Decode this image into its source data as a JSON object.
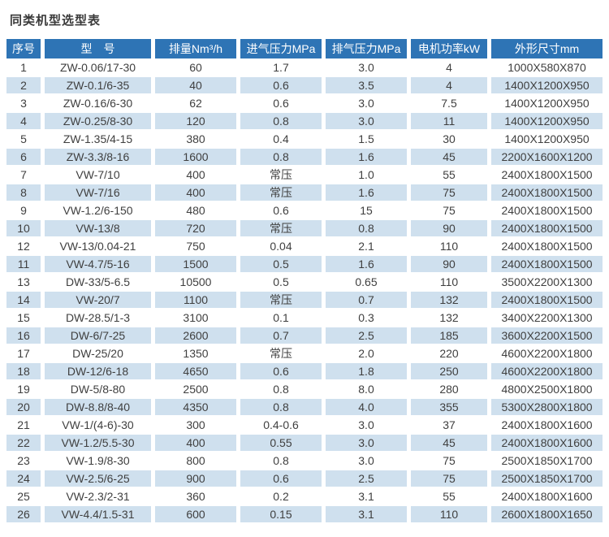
{
  "title": "同类机型选型表",
  "colors": {
    "page_bg": "#ffffff",
    "header_bg": "#2e74b5",
    "header_text": "#ffffff",
    "row_alt_bg": "#cfe0ee",
    "text": "#3f3f3f"
  },
  "table": {
    "headers": [
      "序号",
      "型　号",
      "排量Nm³/h",
      "进气压力MPa",
      "排气压力MPa",
      "电机功率kW",
      "外形尺寸mm"
    ],
    "rows": [
      [
        "1",
        "ZW-0.06/17-30",
        "60",
        "1.7",
        "3.0",
        "4",
        "1000X580X870"
      ],
      [
        "2",
        "ZW-0.1/6-35",
        "40",
        "0.6",
        "3.5",
        "4",
        "1400X1200X950"
      ],
      [
        "3",
        "ZW-0.16/6-30",
        "62",
        "0.6",
        "3.0",
        "7.5",
        "1400X1200X950"
      ],
      [
        "4",
        "ZW-0.25/8-30",
        "120",
        "0.8",
        "3.0",
        "11",
        "1400X1200X950"
      ],
      [
        "5",
        "ZW-1.35/4-15",
        "380",
        "0.4",
        "1.5",
        "30",
        "1400X1200X950"
      ],
      [
        "6",
        "ZW-3.3/8-16",
        "1600",
        "0.8",
        "1.6",
        "45",
        "2200X1600X1200"
      ],
      [
        "7",
        "VW-7/10",
        "400",
        "常压",
        "1.0",
        "55",
        "2400X1800X1500"
      ],
      [
        "8",
        "VW-7/16",
        "400",
        "常压",
        "1.6",
        "75",
        "2400X1800X1500"
      ],
      [
        "9",
        "VW-1.2/6-150",
        "480",
        "0.6",
        "15",
        "75",
        "2400X1800X1500"
      ],
      [
        "10",
        "VW-13/8",
        "720",
        "常压",
        "0.8",
        "90",
        "2400X1800X1500"
      ],
      [
        "12",
        "VW-13/0.04-21",
        "750",
        "0.04",
        "2.1",
        "110",
        "2400X1800X1500"
      ],
      [
        "11",
        "VW-4.7/5-16",
        "1500",
        "0.5",
        "1.6",
        "90",
        "2400X1800X1500"
      ],
      [
        "13",
        "DW-33/5-6.5",
        "10500",
        "0.5",
        "0.65",
        "110",
        "3500X2200X1300"
      ],
      [
        "14",
        "VW-20/7",
        "1100",
        "常压",
        "0.7",
        "132",
        "2400X1800X1500"
      ],
      [
        "15",
        "DW-28.5/1-3",
        "3100",
        "0.1",
        "0.3",
        "132",
        "3400X2200X1300"
      ],
      [
        "16",
        "DW-6/7-25",
        "2600",
        "0.7",
        "2.5",
        "185",
        "3600X2200X1500"
      ],
      [
        "17",
        "DW-25/20",
        "1350",
        "常压",
        "2.0",
        "220",
        "4600X2200X1800"
      ],
      [
        "18",
        "DW-12/6-18",
        "4650",
        "0.6",
        "1.8",
        "250",
        "4600X2200X1800"
      ],
      [
        "19",
        "DW-5/8-80",
        "2500",
        "0.8",
        "8.0",
        "280",
        "4800X2500X1800"
      ],
      [
        "20",
        "DW-8.8/8-40",
        "4350",
        "0.8",
        "4.0",
        "355",
        "5300X2800X1800"
      ],
      [
        "21",
        "VW-1/(4-6)-30",
        "300",
        "0.4-0.6",
        "3.0",
        "37",
        "2400X1800X1600"
      ],
      [
        "22",
        "VW-1.2/5.5-30",
        "400",
        "0.55",
        "3.0",
        "45",
        "2400X1800X1600"
      ],
      [
        "23",
        "VW-1.9/8-30",
        "800",
        "0.8",
        "3.0",
        "75",
        "2500X1850X1700"
      ],
      [
        "24",
        "VW-2.5/6-25",
        "900",
        "0.6",
        "2.5",
        "75",
        "2500X1850X1700"
      ],
      [
        "25",
        "VW-2.3/2-31",
        "360",
        "0.2",
        "3.1",
        "55",
        "2400X1800X1600"
      ],
      [
        "26",
        "VW-4.4/1.5-31",
        "600",
        "0.15",
        "3.1",
        "110",
        "2600X1800X1650"
      ]
    ]
  }
}
